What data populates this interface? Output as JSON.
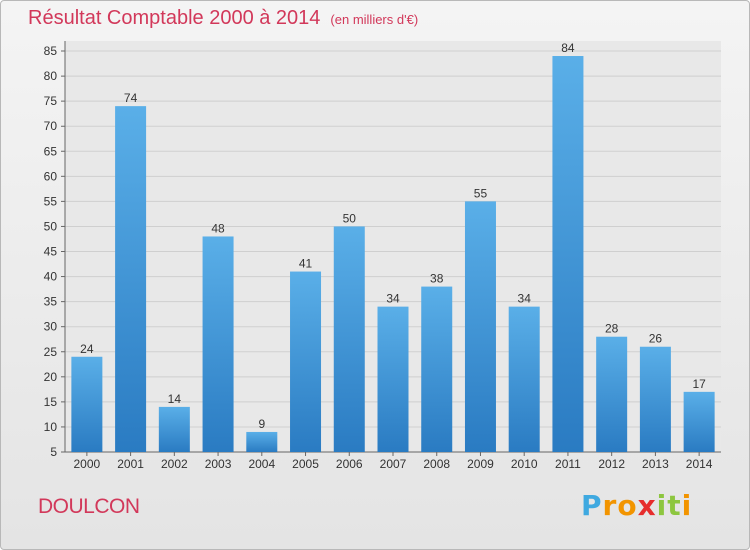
{
  "chart_data": {
    "type": "bar",
    "title": "Résultat Comptable 2000 à 2014",
    "subtitle": "(en milliers d'€)",
    "categories": [
      "2000",
      "2001",
      "2002",
      "2003",
      "2004",
      "2005",
      "2006",
      "2007",
      "2008",
      "2009",
      "2010",
      "2011",
      "2012",
      "2013",
      "2014"
    ],
    "values": [
      24,
      74,
      14,
      48,
      9,
      41,
      50,
      34,
      38,
      55,
      34,
      84,
      28,
      26,
      17
    ],
    "ylim": [
      5,
      85
    ],
    "yticks": [
      5,
      10,
      15,
      20,
      25,
      30,
      35,
      40,
      45,
      50,
      55,
      60,
      65,
      70,
      75,
      80,
      85
    ],
    "grid": true,
    "bar_color": "#3d8fd8"
  },
  "city": "DOULCON",
  "logo": {
    "letters": [
      "P",
      "r",
      "o",
      "x",
      "i",
      "t",
      "i"
    ],
    "colors": [
      "#3fa9e0",
      "#f29400",
      "#f29400",
      "#e62d2d",
      "#8dc63f",
      "#8dc63f",
      "#f29400"
    ]
  }
}
